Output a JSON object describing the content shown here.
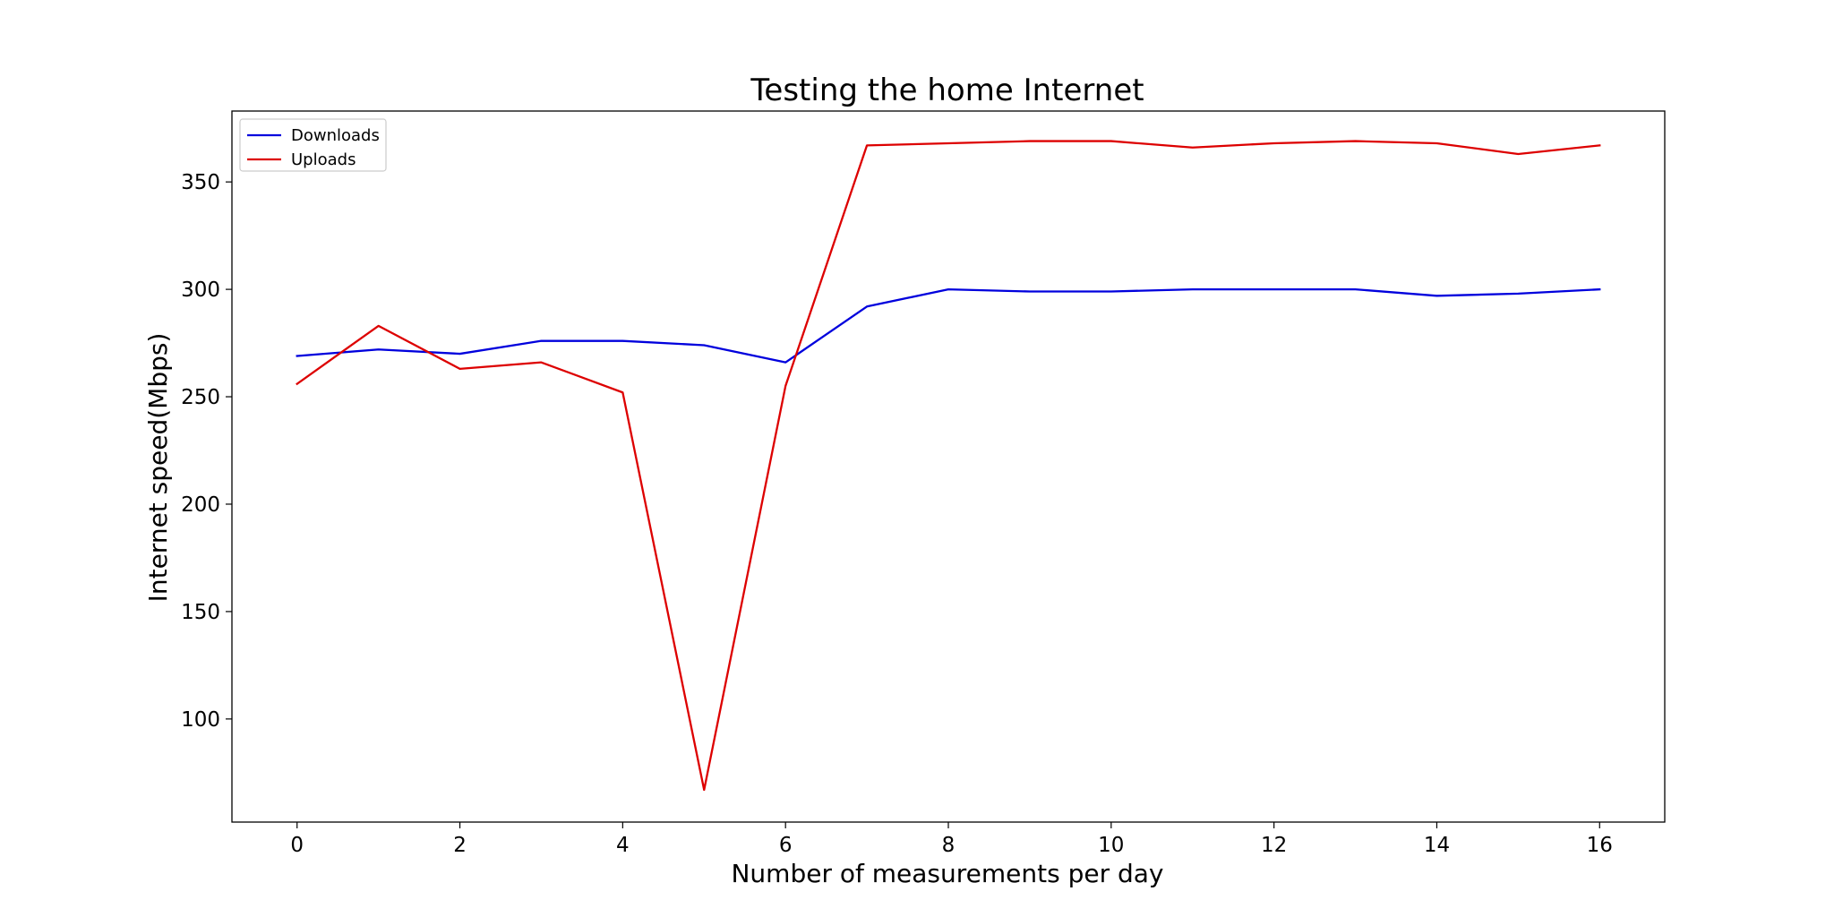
{
  "chart_data": {
    "type": "line",
    "title": "Testing the home Internet",
    "xlabel": "Number of measurements per day",
    "ylabel": "Internet speed(Mbps)",
    "x": [
      0,
      1,
      2,
      3,
      4,
      5,
      6,
      7,
      8,
      9,
      10,
      11,
      12,
      13,
      14,
      15,
      16
    ],
    "xlim": [
      -0.8,
      16.8
    ],
    "ylim": [
      52,
      383
    ],
    "xticks": [
      0,
      2,
      4,
      6,
      8,
      10,
      12,
      14,
      16
    ],
    "yticks": [
      100,
      150,
      200,
      250,
      300,
      350
    ],
    "grid": false,
    "legend_position": "top-left",
    "series": [
      {
        "name": "Downloads",
        "color": "#0000dd",
        "values": [
          269,
          272,
          270,
          276,
          276,
          274,
          266,
          292,
          300,
          299,
          299,
          300,
          300,
          300,
          297,
          298,
          300
        ]
      },
      {
        "name": "Uploads",
        "color": "#dd0000",
        "values": [
          256,
          283,
          263,
          266,
          252,
          67,
          255,
          367,
          368,
          369,
          369,
          366,
          368,
          369,
          368,
          363,
          367
        ]
      }
    ]
  }
}
